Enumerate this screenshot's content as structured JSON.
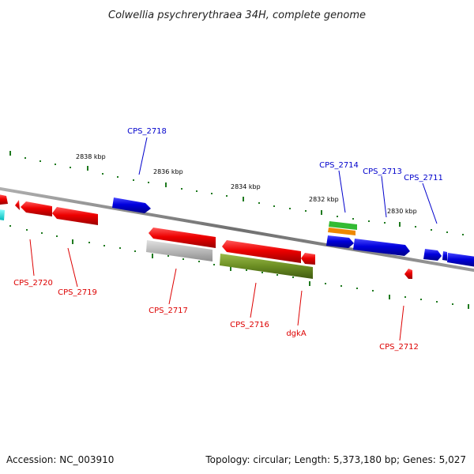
{
  "title": "Colwellia psychrerythraea 34H, complete genome",
  "footer": {
    "accession": "Accession: NC_003910",
    "topology": "Topology: circular; Length: 5,373,180 bp; Genes: 5,027"
  },
  "kbp_labels": [
    "2838 kbp",
    "2836 kbp",
    "2834 kbp",
    "2832 kbp",
    "2830 kbp"
  ],
  "colors": {
    "backbone": "#808080",
    "forward_gene": "#0000dd",
    "reverse_gene": "#ee0000",
    "tick": "#1f7a1f",
    "pseudogene": "#b0b0b0",
    "rna_gene": "#6b8e23",
    "misc_a": "#33bb33",
    "misc_b": "#ee8800"
  },
  "gene_labels": {
    "cps_2718": "CPS_2718",
    "cps_2714": "CPS_2714",
    "cps_2713": "CPS_2713",
    "cps_2711": "CPS_2711",
    "cps_2720": "CPS_2720",
    "cps_2719": "CPS_2719",
    "cps_2717": "CPS_2717",
    "cps_2716": "CPS_2716",
    "dgka": "dgkA",
    "cps_2712": "CPS_2712"
  }
}
